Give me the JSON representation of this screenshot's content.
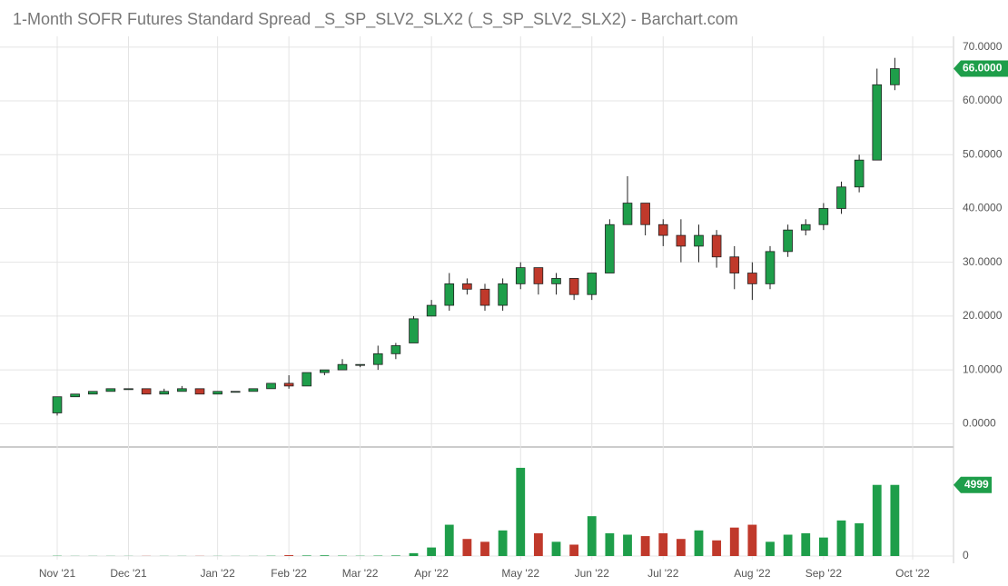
{
  "chart_data": {
    "type": "candlestick",
    "title": "1-Month SOFR Futures Standard Spread _S_SP_SLV2_SLX2 (_S_SP_SLV2_SLX2) - Barchart.com",
    "categories": [
      "Nov '21",
      null,
      null,
      null,
      "Dec '21",
      null,
      null,
      null,
      null,
      "Jan '22",
      null,
      null,
      null,
      "Feb '22",
      null,
      null,
      null,
      "Mar '22",
      null,
      null,
      null,
      "Apr '22",
      null,
      null,
      null,
      null,
      "May '22",
      null,
      null,
      null,
      "Jun '22",
      null,
      null,
      null,
      "Jul '22",
      null,
      null,
      null,
      null,
      "Aug '22",
      null,
      null,
      null,
      "Sep '22",
      null,
      null,
      null,
      null,
      "Oct '22"
    ],
    "open": [
      2,
      5,
      5.5,
      6,
      6.5,
      6.5,
      5.5,
      6,
      6.5,
      5.5,
      6,
      6,
      6.5,
      7.5,
      7,
      9.5,
      10,
      11,
      11,
      13,
      15,
      20,
      22,
      26,
      25,
      22,
      26,
      29,
      26,
      27,
      24,
      28,
      37,
      41,
      37,
      35,
      33,
      35,
      31,
      28,
      26,
      32,
      36,
      37,
      40,
      44,
      49,
      63,
      null
    ],
    "high": [
      5,
      5.5,
      6,
      6.5,
      6.5,
      6.5,
      6.5,
      7,
      6.5,
      6,
      6,
      6.5,
      7.5,
      9,
      9.5,
      10,
      12,
      11,
      14.5,
      15,
      20,
      23,
      28,
      27,
      26,
      27,
      30,
      29,
      28,
      27,
      28,
      38,
      46,
      41,
      38,
      38,
      37,
      36,
      33,
      30,
      33,
      37,
      38,
      41,
      45,
      50,
      66,
      68,
      null
    ],
    "low": [
      1.5,
      5,
      5.5,
      6,
      6.5,
      5.5,
      5.5,
      6,
      5.5,
      5.5,
      6,
      6,
      6.5,
      6.5,
      7,
      9,
      10,
      10.5,
      10,
      12,
      15,
      20,
      21,
      24,
      21,
      21,
      25,
      24,
      24,
      23,
      23,
      28,
      37,
      35,
      33,
      30,
      30,
      29,
      25,
      23,
      25,
      31,
      35,
      36,
      39,
      43,
      49,
      62,
      null
    ],
    "close": [
      5,
      5.5,
      6,
      6.5,
      6.5,
      5.5,
      6,
      6.5,
      5.5,
      6,
      6,
      6.5,
      7.5,
      7,
      9.5,
      10,
      11,
      11,
      13,
      14.5,
      19.5,
      22,
      26,
      25,
      22,
      26,
      29,
      26,
      27,
      24,
      28,
      37,
      41,
      37,
      35,
      33,
      35,
      31,
      28,
      26,
      32,
      36,
      37,
      40,
      44,
      49,
      63,
      66,
      null
    ],
    "volume": [
      20,
      10,
      10,
      10,
      10,
      10,
      10,
      10,
      10,
      10,
      10,
      10,
      20,
      60,
      40,
      50,
      30,
      20,
      30,
      40,
      200,
      600,
      2200,
      1200,
      1000,
      1800,
      6200,
      1600,
      1000,
      800,
      2800,
      1600,
      1500,
      1400,
      1600,
      1200,
      1800,
      1100,
      2000,
      2200,
      1000,
      1500,
      1600,
      1300,
      2500,
      2300,
      5000,
      4999,
      null
    ],
    "up_color": "#1e9e4a",
    "down_color": "#c0392b",
    "ylim": [
      -4,
      72
    ],
    "yticks": [
      {
        "value": 0,
        "label": "0.0000"
      },
      {
        "value": 10,
        "label": "10.0000"
      },
      {
        "value": 20,
        "label": "20.0000"
      },
      {
        "value": 30,
        "label": "30.0000"
      },
      {
        "value": 40,
        "label": "40.0000"
      },
      {
        "value": 50,
        "label": "50.0000"
      },
      {
        "value": 60,
        "label": "60.0000"
      },
      {
        "value": 70,
        "label": "70.0000"
      }
    ],
    "last_close_label": "66.0000",
    "volume_ylim": [
      0,
      7600
    ],
    "volume_yticks": [
      0
    ],
    "last_volume_label": "4999",
    "grid": true
  }
}
